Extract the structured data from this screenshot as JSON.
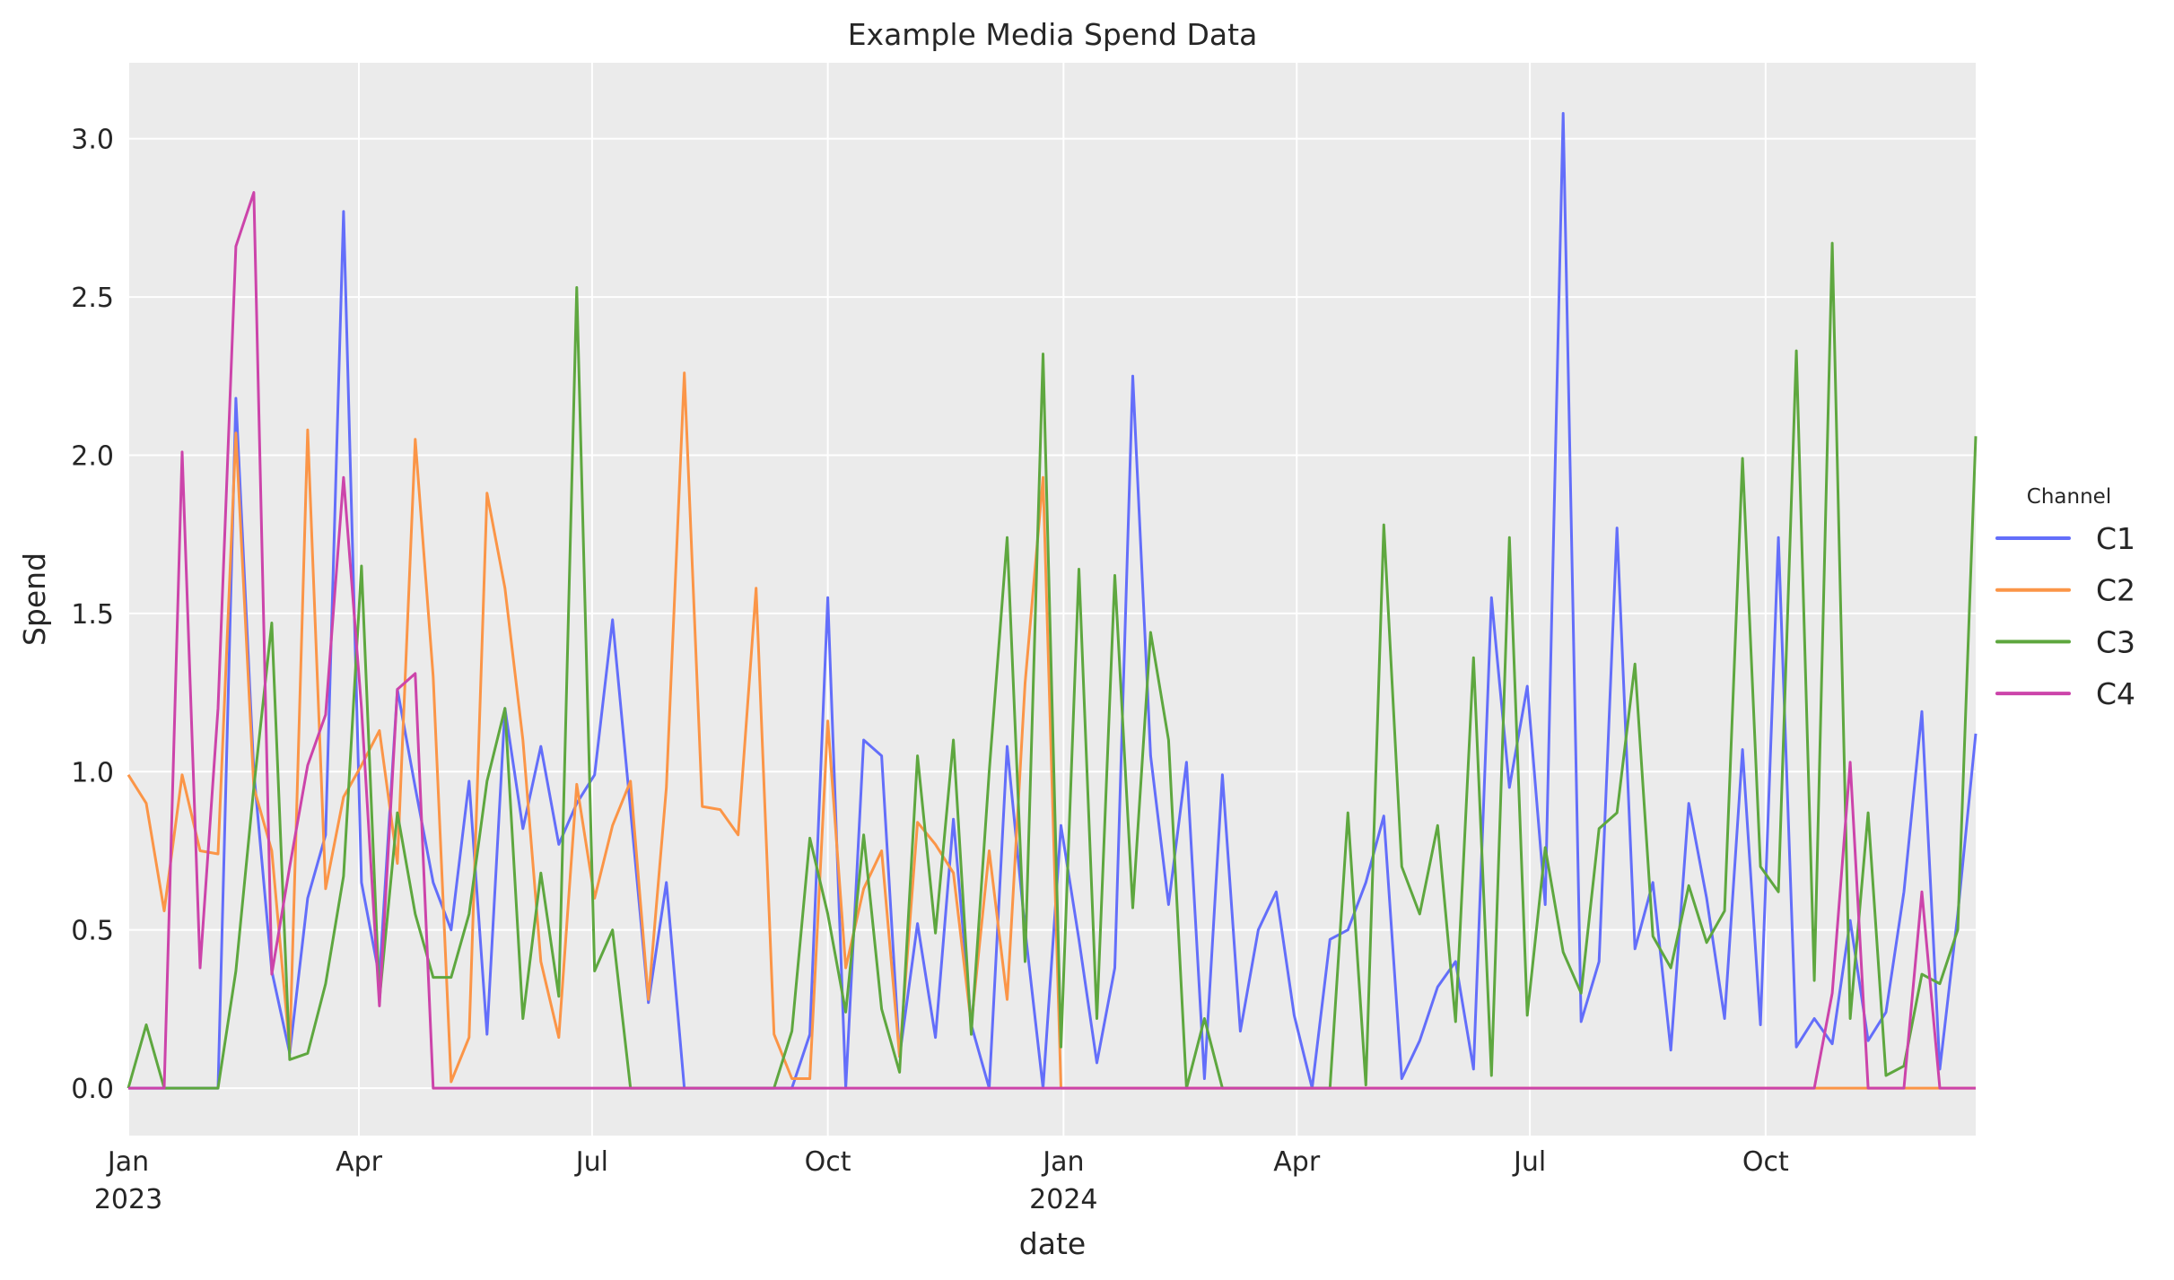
{
  "chart_data": {
    "type": "line",
    "title": "Example Media Spend Data",
    "xlabel": "date",
    "ylabel": "Spend",
    "ylim": [
      -0.15,
      3.24
    ],
    "xlim": [
      "2023-01-01",
      "2024-12-22"
    ],
    "grid": true,
    "background": "#ebebeb",
    "legend": {
      "title": "Channel",
      "placement": "right-outside"
    },
    "x_ticks": [
      {
        "date": "2023-01-01",
        "label": "Jan",
        "sublabel": "2023"
      },
      {
        "date": "2023-04-01",
        "label": "Apr",
        "sublabel": ""
      },
      {
        "date": "2023-07-01",
        "label": "Jul",
        "sublabel": ""
      },
      {
        "date": "2023-10-01",
        "label": "Oct",
        "sublabel": ""
      },
      {
        "date": "2024-01-01",
        "label": "Jan",
        "sublabel": "2024"
      },
      {
        "date": "2024-04-01",
        "label": "Apr",
        "sublabel": ""
      },
      {
        "date": "2024-07-01",
        "label": "Jul",
        "sublabel": ""
      },
      {
        "date": "2024-10-01",
        "label": "Oct",
        "sublabel": ""
      }
    ],
    "y_ticks": [
      {
        "value": 0,
        "label": "0.0"
      },
      {
        "value": 0.5,
        "label": "0.5"
      },
      {
        "value": 1.0,
        "label": "1.0"
      },
      {
        "value": 1.5,
        "label": "1.5"
      },
      {
        "value": 2.0,
        "label": "2.0"
      },
      {
        "value": 2.5,
        "label": "2.5"
      },
      {
        "value": 3.0,
        "label": "3.0"
      }
    ],
    "x": [
      "2023-01-01",
      "2023-01-08",
      "2023-01-15",
      "2023-01-22",
      "2023-01-29",
      "2023-02-05",
      "2023-02-12",
      "2023-02-19",
      "2023-02-26",
      "2023-03-05",
      "2023-03-12",
      "2023-03-19",
      "2023-03-26",
      "2023-04-02",
      "2023-04-09",
      "2023-04-16",
      "2023-04-23",
      "2023-04-30",
      "2023-05-07",
      "2023-05-14",
      "2023-05-21",
      "2023-05-28",
      "2023-06-04",
      "2023-06-11",
      "2023-06-18",
      "2023-06-25",
      "2023-07-02",
      "2023-07-09",
      "2023-07-16",
      "2023-07-23",
      "2023-07-30",
      "2023-08-06",
      "2023-08-13",
      "2023-08-20",
      "2023-08-27",
      "2023-09-03",
      "2023-09-10",
      "2023-09-17",
      "2023-09-24",
      "2023-10-01",
      "2023-10-08",
      "2023-10-15",
      "2023-10-22",
      "2023-10-29",
      "2023-11-05",
      "2023-11-12",
      "2023-11-19",
      "2023-11-26",
      "2023-12-03",
      "2023-12-10",
      "2023-12-17",
      "2023-12-24",
      "2023-12-31",
      "2024-01-07",
      "2024-01-14",
      "2024-01-21",
      "2024-01-28",
      "2024-02-04",
      "2024-02-11",
      "2024-02-18",
      "2024-02-25",
      "2024-03-03",
      "2024-03-10",
      "2024-03-17",
      "2024-03-24",
      "2024-03-31",
      "2024-04-07",
      "2024-04-14",
      "2024-04-21",
      "2024-04-28",
      "2024-05-05",
      "2024-05-12",
      "2024-05-19",
      "2024-05-26",
      "2024-06-02",
      "2024-06-09",
      "2024-06-16",
      "2024-06-23",
      "2024-06-30",
      "2024-07-07",
      "2024-07-14",
      "2024-07-21",
      "2024-07-28",
      "2024-08-04",
      "2024-08-11",
      "2024-08-18",
      "2024-08-25",
      "2024-09-01",
      "2024-09-08",
      "2024-09-15",
      "2024-09-22",
      "2024-09-29",
      "2024-10-06",
      "2024-10-13",
      "2024-10-20",
      "2024-10-27",
      "2024-11-03",
      "2024-11-10",
      "2024-11-17",
      "2024-11-24",
      "2024-12-01",
      "2024-12-08",
      "2024-12-15",
      "2024-12-22"
    ],
    "series": [
      {
        "name": "C1",
        "color": "#636efa",
        "values": [
          0,
          0,
          0,
          0,
          0,
          0,
          2.18,
          1.0,
          0.37,
          0.11,
          0.6,
          0.8,
          2.77,
          0.65,
          0.35,
          1.26,
          0.95,
          0.65,
          0.5,
          0.97,
          0.17,
          1.2,
          0.82,
          1.08,
          0.77,
          0.9,
          0.99,
          1.48,
          0.88,
          0.27,
          0.65,
          0,
          0,
          0,
          0,
          0,
          0,
          0,
          0.17,
          1.55,
          0,
          1.1,
          1.05,
          0.1,
          0.52,
          0.16,
          0.85,
          0.2,
          0,
          1.08,
          0.5,
          0,
          0.83,
          0.47,
          0.08,
          0.38,
          2.25,
          1.05,
          0.58,
          1.03,
          0.03,
          0.99,
          0.18,
          0.5,
          0.62,
          0.23,
          0,
          0.47,
          0.5,
          0.65,
          0.86,
          0.03,
          0.15,
          0.32,
          0.4,
          0.06,
          1.55,
          0.95,
          1.27,
          0.58,
          3.08,
          0.21,
          0.4,
          1.77,
          0.44,
          0.65,
          0.12,
          0.9,
          0.6,
          0.22,
          1.07,
          0.2,
          1.74,
          0.13,
          0.22,
          0.14,
          0.53,
          0.15,
          0.24,
          0.62,
          1.19,
          0.06,
          0.55,
          1.12
        ]
      },
      {
        "name": "C2",
        "color": "#fb9547",
        "values": [
          0.99,
          0.9,
          0.56,
          0.99,
          0.75,
          0.74,
          2.07,
          0.95,
          0.75,
          0.12,
          2.08,
          0.63,
          0.92,
          1.02,
          1.13,
          0.71,
          2.05,
          1.3,
          0.02,
          0.16,
          1.88,
          1.58,
          1.1,
          0.4,
          0.16,
          0.96,
          0.6,
          0.83,
          0.97,
          0.28,
          0.95,
          2.26,
          0.89,
          0.88,
          0.8,
          1.58,
          0.17,
          0.03,
          0.03,
          1.16,
          0.38,
          0.63,
          0.75,
          0.1,
          0.84,
          0.77,
          0.68,
          0.2,
          0.75,
          0.28,
          1.28,
          1.93,
          0,
          0,
          0,
          0,
          0,
          0,
          0,
          0,
          0,
          0,
          0,
          0,
          0,
          0,
          0,
          0,
          0,
          0,
          0,
          0,
          0,
          0,
          0,
          0,
          0,
          0,
          0,
          0,
          0,
          0,
          0,
          0,
          0,
          0,
          0,
          0,
          0,
          0,
          0,
          0,
          0,
          0,
          0,
          0,
          0,
          0,
          0,
          0,
          0,
          0,
          0,
          0
        ]
      },
      {
        "name": "C3",
        "color": "#5ea73f",
        "values": [
          0,
          0.2,
          0,
          0,
          0,
          0,
          0.37,
          0.95,
          1.47,
          0.09,
          0.11,
          0.33,
          0.67,
          1.65,
          0.28,
          0.87,
          0.55,
          0.35,
          0.35,
          0.55,
          0.97,
          1.2,
          0.22,
          0.68,
          0.29,
          2.53,
          0.37,
          0.5,
          0,
          0,
          0,
          0,
          0,
          0,
          0,
          0,
          0,
          0.18,
          0.79,
          0.55,
          0.24,
          0.8,
          0.25,
          0.05,
          1.05,
          0.49,
          1.1,
          0.17,
          1.0,
          1.74,
          0.4,
          2.32,
          0.13,
          1.64,
          0.22,
          1.62,
          0.57,
          1.44,
          1.1,
          0,
          0.22,
          0,
          0,
          0,
          0,
          0,
          0,
          0,
          0.87,
          0.01,
          1.78,
          0.7,
          0.55,
          0.83,
          0.21,
          1.36,
          0.04,
          1.74,
          0.23,
          0.76,
          0.43,
          0.3,
          0.82,
          0.87,
          1.34,
          0.48,
          0.38,
          0.64,
          0.46,
          0.56,
          1.99,
          0.7,
          0.62,
          2.33,
          0.34,
          2.67,
          0.22,
          0.87,
          0.04,
          0.07,
          0.36,
          0.33,
          0.5,
          2.06
        ]
      },
      {
        "name": "C4",
        "color": "#cc44aa",
        "values": [
          0,
          0,
          0,
          2.01,
          0.38,
          1.2,
          2.66,
          2.83,
          0.36,
          0.7,
          1.02,
          1.18,
          1.93,
          1.2,
          0.26,
          1.26,
          1.31,
          0,
          0,
          0,
          0,
          0,
          0,
          0,
          0,
          0,
          0,
          0,
          0,
          0,
          0,
          0,
          0,
          0,
          0,
          0,
          0,
          0,
          0,
          0,
          0,
          0,
          0,
          0,
          0,
          0,
          0,
          0,
          0,
          0,
          0,
          0,
          0,
          0,
          0,
          0,
          0,
          0,
          0,
          0,
          0,
          0,
          0,
          0,
          0,
          0,
          0,
          0,
          0,
          0,
          0,
          0,
          0,
          0,
          0,
          0,
          0,
          0,
          0,
          0,
          0,
          0,
          0,
          0,
          0,
          0,
          0,
          0,
          0,
          0,
          0,
          0,
          0,
          0,
          0,
          0.3,
          1.03,
          0,
          0,
          0,
          0.62,
          0,
          0,
          0
        ]
      }
    ]
  }
}
